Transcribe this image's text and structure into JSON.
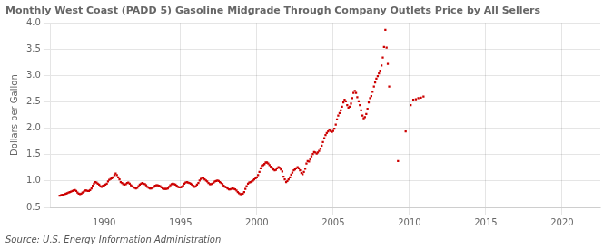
{
  "chart_data": {
    "type": "scatter",
    "title": "Monthly West Coast (PADD 5) Gasoline Midgrade Through Company Outlets Price by All Sellers",
    "y_label": "Dollars per Gallon",
    "annotations": [
      "Source: U.S. Energy Information Administration"
    ],
    "color": "#cc0000",
    "marker": "square",
    "grid": true,
    "xlim": [
      1986.5,
      2022.5
    ],
    "ylim": [
      0.5,
      4.0
    ],
    "xticks": [
      1990,
      1995,
      2000,
      2005,
      2010,
      2015,
      2020
    ],
    "yticks": [
      0.5,
      {
        "value": 1.0,
        "label": "1.0"
      },
      1.5,
      {
        "value": 2.0,
        "label": "2.0"
      },
      2.5,
      {
        "value": 3.0,
        "label": "3.0"
      },
      3.5,
      {
        "value": 4.0,
        "label": "4.0"
      }
    ],
    "x": [
      1987.08,
      1987.17,
      1987.25,
      1987.33,
      1987.42,
      1987.5,
      1987.58,
      1987.67,
      1987.75,
      1987.83,
      1987.92,
      1988.0,
      1988.08,
      1988.17,
      1988.25,
      1988.33,
      1988.42,
      1988.5,
      1988.58,
      1988.67,
      1988.75,
      1988.83,
      1988.92,
      1989.0,
      1989.08,
      1989.17,
      1989.25,
      1989.33,
      1989.42,
      1989.5,
      1989.58,
      1989.67,
      1989.75,
      1989.83,
      1989.92,
      1990.0,
      1990.08,
      1990.17,
      1990.25,
      1990.33,
      1990.42,
      1990.5,
      1990.58,
      1990.67,
      1990.75,
      1990.83,
      1990.92,
      1991.0,
      1991.08,
      1991.17,
      1991.25,
      1991.33,
      1991.42,
      1991.5,
      1991.58,
      1991.67,
      1991.75,
      1991.83,
      1991.92,
      1992.0,
      1992.08,
      1992.17,
      1992.25,
      1992.33,
      1992.42,
      1992.5,
      1992.58,
      1992.67,
      1992.75,
      1992.83,
      1992.92,
      1993.0,
      1993.08,
      1993.17,
      1993.25,
      1993.33,
      1993.42,
      1993.5,
      1993.58,
      1993.67,
      1993.75,
      1993.83,
      1993.92,
      1994.0,
      1994.08,
      1994.17,
      1994.25,
      1994.33,
      1994.42,
      1994.5,
      1994.58,
      1994.67,
      1994.75,
      1994.83,
      1994.92,
      1995.0,
      1995.08,
      1995.17,
      1995.25,
      1995.33,
      1995.42,
      1995.5,
      1995.58,
      1995.67,
      1995.75,
      1995.83,
      1995.92,
      1996.0,
      1996.08,
      1996.17,
      1996.25,
      1996.33,
      1996.42,
      1996.5,
      1996.58,
      1996.67,
      1996.75,
      1996.83,
      1996.92,
      1997.0,
      1997.08,
      1997.17,
      1997.25,
      1997.33,
      1997.42,
      1997.5,
      1997.58,
      1997.67,
      1997.75,
      1997.83,
      1997.92,
      1998.0,
      1998.08,
      1998.17,
      1998.25,
      1998.33,
      1998.42,
      1998.5,
      1998.58,
      1998.67,
      1998.75,
      1998.83,
      1998.92,
      1999.0,
      1999.08,
      1999.17,
      1999.25,
      1999.33,
      1999.42,
      1999.5,
      1999.58,
      1999.67,
      1999.75,
      1999.83,
      1999.92,
      2000.0,
      2000.08,
      2000.17,
      2000.25,
      2000.33,
      2000.42,
      2000.5,
      2000.58,
      2000.67,
      2000.75,
      2000.83,
      2000.92,
      2001.0,
      2001.08,
      2001.17,
      2001.25,
      2001.33,
      2001.42,
      2001.5,
      2001.58,
      2001.67,
      2001.75,
      2001.83,
      2001.92,
      2002.0,
      2002.08,
      2002.17,
      2002.25,
      2002.33,
      2002.42,
      2002.5,
      2002.58,
      2002.67,
      2002.75,
      2002.83,
      2002.92,
      2003.0,
      2003.08,
      2003.17,
      2003.25,
      2003.33,
      2003.42,
      2003.5,
      2003.58,
      2003.67,
      2003.75,
      2003.83,
      2003.92,
      2004.0,
      2004.08,
      2004.17,
      2004.25,
      2004.33,
      2004.42,
      2004.5,
      2004.58,
      2004.67,
      2004.75,
      2004.83,
      2004.92,
      2005.0,
      2005.08,
      2005.17,
      2005.25,
      2005.33,
      2005.42,
      2005.5,
      2005.58,
      2005.67,
      2005.75,
      2005.83,
      2005.92,
      2006.0,
      2006.08,
      2006.17,
      2006.25,
      2006.33,
      2006.42,
      2006.5,
      2006.58,
      2006.67,
      2006.75,
      2006.83,
      2006.92,
      2007.0,
      2007.08,
      2007.17,
      2007.25,
      2007.33,
      2007.42,
      2007.5,
      2007.58,
      2007.67,
      2007.75,
      2007.83,
      2007.92,
      2008.0,
      2008.08,
      2008.17,
      2008.25,
      2008.33,
      2008.42,
      2008.5,
      2008.58,
      2008.67,
      2009.25,
      2009.75,
      2010.08,
      2010.25,
      2010.42,
      2010.58,
      2010.75,
      2010.92
    ],
    "values": [
      0.72,
      0.73,
      0.74,
      0.74,
      0.75,
      0.76,
      0.77,
      0.78,
      0.79,
      0.8,
      0.81,
      0.82,
      0.83,
      0.81,
      0.78,
      0.76,
      0.75,
      0.76,
      0.78,
      0.8,
      0.82,
      0.82,
      0.81,
      0.81,
      0.83,
      0.86,
      0.91,
      0.95,
      0.98,
      0.97,
      0.95,
      0.93,
      0.9,
      0.89,
      0.91,
      0.92,
      0.93,
      0.95,
      0.99,
      1.02,
      1.04,
      1.05,
      1.07,
      1.11,
      1.14,
      1.11,
      1.07,
      1.03,
      0.98,
      0.96,
      0.94,
      0.93,
      0.94,
      0.96,
      0.97,
      0.95,
      0.92,
      0.9,
      0.88,
      0.87,
      0.86,
      0.87,
      0.9,
      0.93,
      0.95,
      0.96,
      0.95,
      0.94,
      0.92,
      0.89,
      0.87,
      0.86,
      0.86,
      0.87,
      0.89,
      0.91,
      0.92,
      0.92,
      0.91,
      0.9,
      0.88,
      0.86,
      0.85,
      0.85,
      0.85,
      0.86,
      0.89,
      0.92,
      0.94,
      0.95,
      0.94,
      0.93,
      0.91,
      0.89,
      0.88,
      0.88,
      0.89,
      0.91,
      0.95,
      0.97,
      0.98,
      0.97,
      0.96,
      0.95,
      0.93,
      0.91,
      0.89,
      0.9,
      0.93,
      0.96,
      1.01,
      1.04,
      1.06,
      1.05,
      1.03,
      1.01,
      0.99,
      0.96,
      0.94,
      0.94,
      0.95,
      0.97,
      0.99,
      1.0,
      1.01,
      1.0,
      0.98,
      0.96,
      0.94,
      0.91,
      0.89,
      0.88,
      0.86,
      0.84,
      0.84,
      0.85,
      0.86,
      0.85,
      0.84,
      0.82,
      0.79,
      0.77,
      0.75,
      0.75,
      0.76,
      0.79,
      0.85,
      0.9,
      0.95,
      0.97,
      0.98,
      0.99,
      1.01,
      1.03,
      1.05,
      1.07,
      1.11,
      1.17,
      1.24,
      1.29,
      1.3,
      1.32,
      1.35,
      1.35,
      1.33,
      1.3,
      1.27,
      1.25,
      1.22,
      1.2,
      1.21,
      1.24,
      1.26,
      1.25,
      1.22,
      1.18,
      1.08,
      1.03,
      0.98,
      1.0,
      1.03,
      1.07,
      1.12,
      1.16,
      1.2,
      1.22,
      1.24,
      1.26,
      1.24,
      1.2,
      1.15,
      1.13,
      1.17,
      1.23,
      1.33,
      1.38,
      1.37,
      1.41,
      1.47,
      1.51,
      1.55,
      1.54,
      1.52,
      1.54,
      1.57,
      1.61,
      1.67,
      1.74,
      1.81,
      1.87,
      1.91,
      1.94,
      1.97,
      1.95,
      1.93,
      1.95,
      1.99,
      2.07,
      2.17,
      2.24,
      2.29,
      2.34,
      2.41,
      2.49,
      2.54,
      2.51,
      2.44,
      2.39,
      2.41,
      2.47,
      2.57,
      2.67,
      2.71,
      2.67,
      2.59,
      2.51,
      2.44,
      2.34,
      2.24,
      2.19,
      2.21,
      2.27,
      2.37,
      2.49,
      2.57,
      2.61,
      2.69,
      2.79,
      2.87,
      2.94,
      2.99,
      3.04,
      3.09,
      3.19,
      3.34,
      3.54,
      3.87,
      3.53,
      3.22,
      2.79,
      1.38,
      1.94,
      2.44,
      2.54,
      2.55,
      2.57,
      2.58,
      2.6
    ]
  }
}
